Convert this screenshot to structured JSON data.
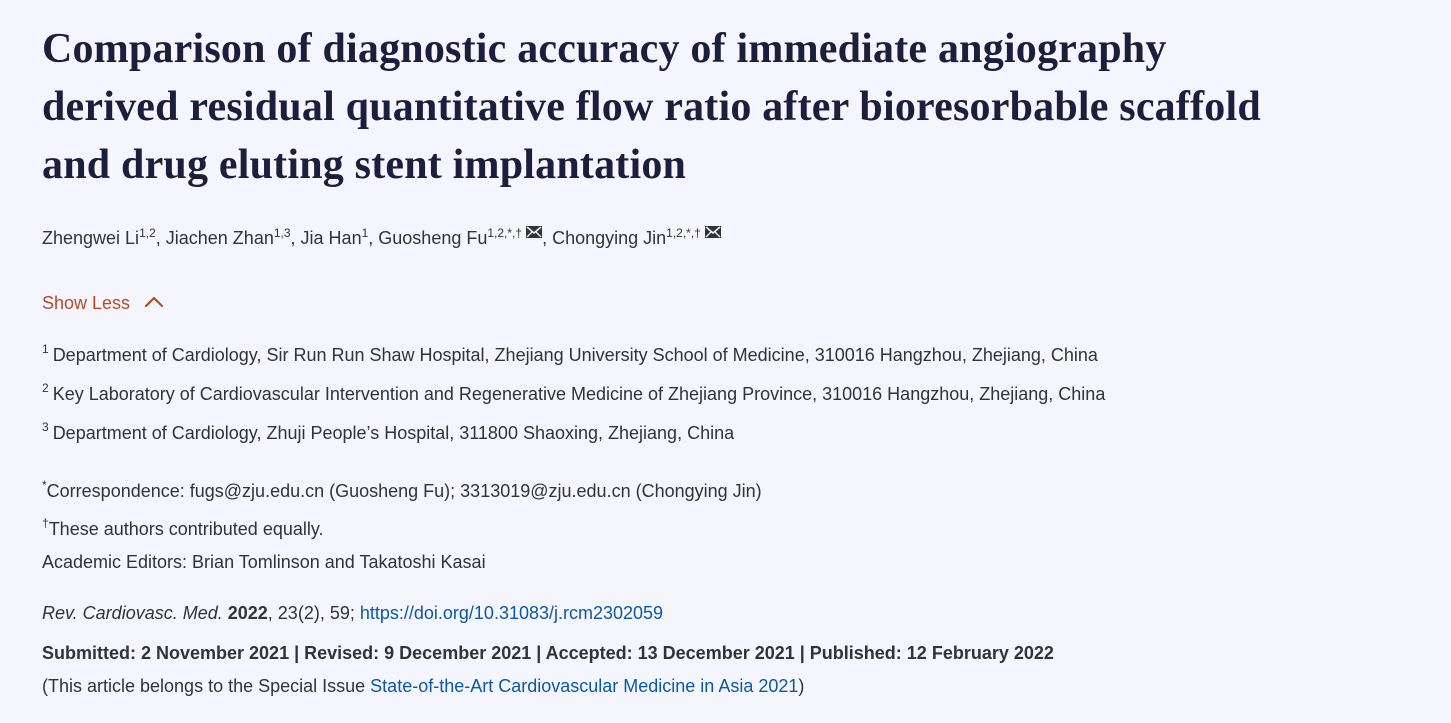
{
  "article": {
    "title_lines": [
      "Comparison of diagnostic accuracy of immediate angiography",
      "derived residual quantitative flow ratio after bioresorbable scaffold",
      "and drug eluting stent implantation"
    ],
    "authors": [
      {
        "name": "Zhengwei Li",
        "sup": "1,2",
        "sep": ", "
      },
      {
        "name": "Jiachen Zhan",
        "sup": "1,3",
        "sep": ", "
      },
      {
        "name": "Jia Han",
        "sup": "1",
        "sep": ", "
      },
      {
        "name": "Guosheng Fu",
        "sup": "1,2,*,†",
        "sep": ", "
      },
      {
        "name": "Chongying Jin",
        "sup": "1,2,*,†",
        "sep": ""
      }
    ],
    "icons": {
      "mail": "envelope-icon",
      "chevron": "chevron-up-icon"
    },
    "show_less_label": "Show Less",
    "affiliations": [
      {
        "num": "1",
        "text": "Department of Cardiology, Sir Run Run Shaw Hospital, Zhejiang University School of Medicine, 310016 Hangzhou, Zhejiang, China"
      },
      {
        "num": "2",
        "text": "Key Laboratory of Cardiovascular Intervention and Regenerative Medicine of Zhejiang Province, 310016 Hangzhou, Zhejiang, China"
      },
      {
        "num": "3",
        "text": "Department of Cardiology, Zhuji People’s Hospital, 311800 Shaoxing, Zhejiang, China"
      }
    ],
    "correspondence": {
      "mark": "*",
      "text": "Correspondence: fugs@zju.edu.cn (Guosheng Fu); 3313019@zju.edu.cn (Chongying Jin)"
    },
    "equal_contribution": {
      "mark": "†",
      "text": "These authors contributed equally."
    },
    "editors": "Academic Editors: Brian Tomlinson and Takatoshi Kasai",
    "citation": {
      "journal": "Rev. Cardiovasc. Med.",
      "year": "2022",
      "rest": ", 23(2), 59; ",
      "doi": "https://doi.org/10.31083/j.rcm2302059"
    },
    "dates": "Submitted: 2 November 2021 | Revised: 9 December 2021 | Accepted: 13 December 2021 | Published: 12 February 2022",
    "special_issue": {
      "prefix": "(This article belongs to the Special Issue ",
      "link": "State-of-the-Art Cardiovascular Medicine in Asia 2021",
      "suffix": ")"
    }
  },
  "colors": {
    "background": "#f5f6fd",
    "title": "#1c1f3b",
    "text": "#333333",
    "accent": "#b84a2a",
    "link": "#0a58a8"
  }
}
